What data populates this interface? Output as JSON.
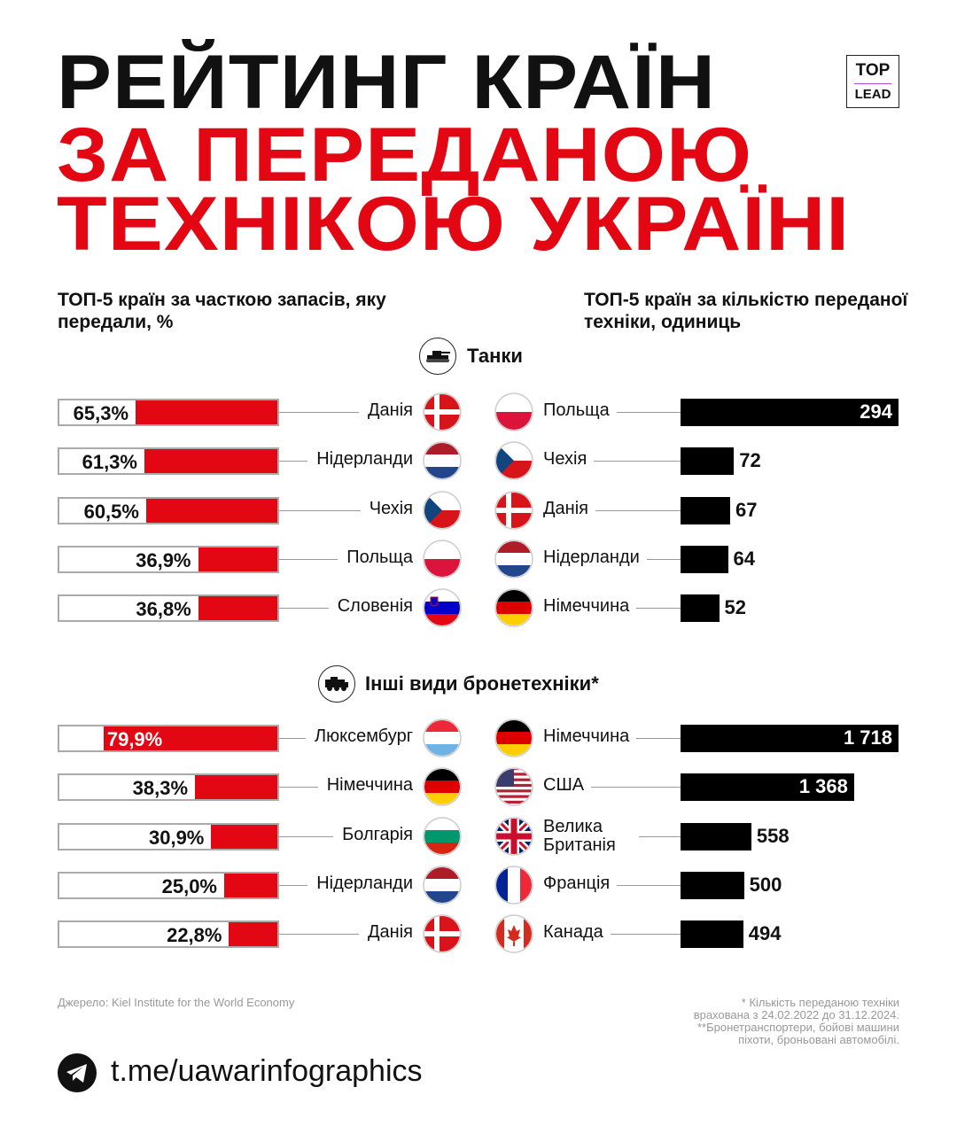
{
  "title": {
    "line1": "РЕЙТИНГ КРАЇН",
    "line2": "ЗА ПЕРЕДАНОЮ",
    "line3": "ТЕХНІКОЮ УКРАЇНІ"
  },
  "logo": {
    "top": "TOP",
    "bottom": "LEAD"
  },
  "subtitles": {
    "left": "ТОП-5 країн за часткою запасів, яку передали, %",
    "right": "ТОП-5 країн за кількістю переданої техніки, одиниць"
  },
  "colors": {
    "red": "#e30613",
    "black": "#000000"
  },
  "chart_data": [
    {
      "type": "bar",
      "title": "Танки",
      "icon": "tank-icon",
      "subtitle": "ТОП-5 країн за часткою запасів, яку передали, %",
      "categories": [
        "Данія",
        "Нідерланди",
        "Чехія",
        "Польща",
        "Словенія"
      ],
      "flags": [
        "dk",
        "nl",
        "cz",
        "pl",
        "si"
      ],
      "values": [
        65.3,
        61.3,
        60.5,
        36.9,
        36.8
      ],
      "labels": [
        "65,3%",
        "61,3%",
        "60,5%",
        "36,9%",
        "36,8%"
      ],
      "xlim": [
        0,
        100
      ]
    },
    {
      "type": "bar",
      "title": "Танки",
      "icon": "tank-icon",
      "subtitle": "ТОП-5 країн за кількістю переданої техніки, одиниць",
      "categories": [
        "Польща",
        "Чехія",
        "Данія",
        "Нідерланди",
        "Німеччина"
      ],
      "flags": [
        "pl",
        "cz",
        "dk",
        "nl",
        "de"
      ],
      "values": [
        294,
        72,
        67,
        64,
        52
      ],
      "labels": [
        "294",
        "72",
        "67",
        "64",
        "52"
      ]
    },
    {
      "type": "bar",
      "title": "Інші види бронетехніки*",
      "icon": "armored-vehicle-icon",
      "subtitle": "ТОП-5 країн за часткою запасів, яку передали, %",
      "categories": [
        "Люксембург",
        "Німеччина",
        "Болгарія",
        "Нідерланди",
        "Данія"
      ],
      "flags": [
        "lu",
        "de",
        "bg",
        "nl",
        "dk"
      ],
      "values": [
        79.9,
        38.3,
        30.9,
        25.0,
        22.8
      ],
      "labels": [
        "79,9%",
        "38,3%",
        "30,9%",
        "25,0%",
        "22,8%"
      ],
      "xlim": [
        0,
        100
      ]
    },
    {
      "type": "bar",
      "title": "Інші види бронетехніки*",
      "icon": "armored-vehicle-icon",
      "subtitle": "ТОП-5 країн за кількістю переданої техніки, одиниць",
      "categories": [
        "Німеччина",
        "США",
        "Велика Британія",
        "Франція",
        "Канада"
      ],
      "flags": [
        "de",
        "us",
        "gb",
        "fr",
        "ca"
      ],
      "values": [
        1718,
        1368,
        558,
        500,
        494
      ],
      "labels": [
        "1 718",
        "1 368",
        "558",
        "500",
        "494"
      ]
    }
  ],
  "footer": {
    "source": "Джерело: Kiel Institute for the World Economy",
    "notes": [
      "* Кількість переданою техніки",
      "врахована з 24.02.2022 до 31.12.2024.",
      "**Бронетранспортери, бойові машини",
      "піхоти, броньовані автомобілі."
    ],
    "telegram": "t.me/uawarinfographics"
  }
}
